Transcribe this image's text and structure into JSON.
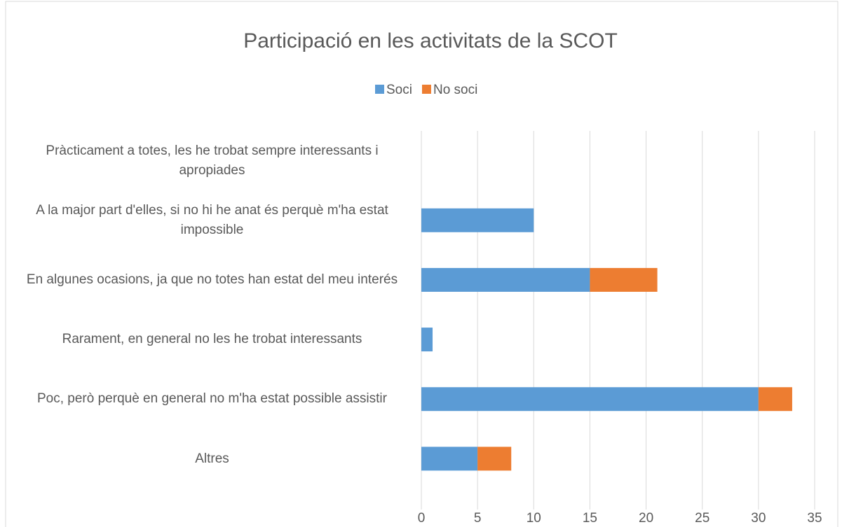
{
  "chart_data": {
    "type": "stacked_barh",
    "title": "Participació en les activitats de la SCOT",
    "categories": [
      "Pràcticament a totes, les he trobat sempre interessants i apropiades",
      "A la major part d'elles, si no hi he anat és perquè m'ha estat impossible",
      "En algunes ocasions, ja que no totes han estat del meu interés",
      "Rarament, en general no les he trobat interessants",
      "Poc, però perquè en general no m'ha estat possible assistir",
      "Altres"
    ],
    "series": [
      {
        "name": "Soci",
        "color": "#5b9bd5",
        "values": [
          0,
          10,
          15,
          1,
          30,
          5
        ]
      },
      {
        "name": "No soci",
        "color": "#ed7d31",
        "values": [
          0,
          0,
          6,
          0,
          3,
          3
        ]
      }
    ],
    "xlim": [
      0,
      35
    ],
    "xticks": [
      0,
      5,
      10,
      15,
      20,
      25,
      30,
      35
    ],
    "grid": true,
    "legend": "top"
  }
}
